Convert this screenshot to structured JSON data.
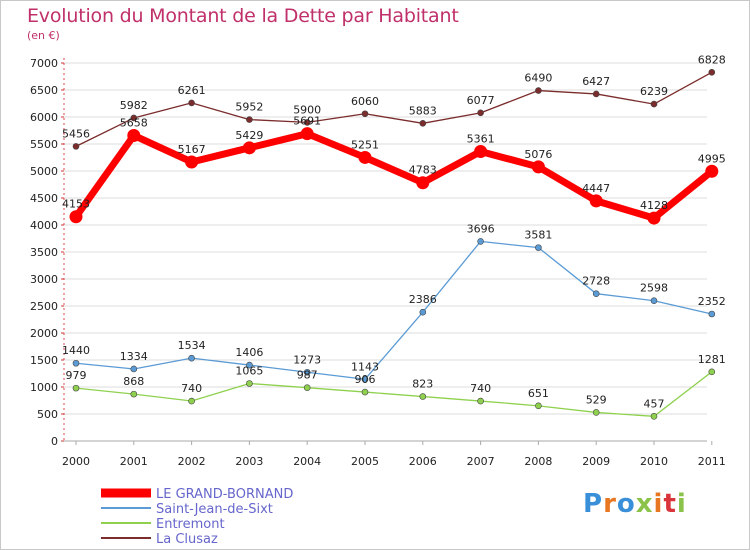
{
  "title": "Evolution du Montant de la Dette par Habitant",
  "subtitle": "(en €)",
  "logo": "Proxiti",
  "colors": {
    "title": "#c0306a",
    "grid": "#dddddd",
    "legend_text": "#6666cc"
  },
  "chart_data": {
    "type": "line",
    "title": "Evolution du Montant de la Dette par Habitant",
    "ylabel": "(en €)",
    "xlabel": "",
    "ylim": [
      0,
      7000
    ],
    "y_ticks": [
      0,
      500,
      1000,
      1500,
      2000,
      2500,
      3000,
      3500,
      4000,
      4500,
      5000,
      5500,
      6000,
      6500,
      7000
    ],
    "categories": [
      "2000",
      "2001",
      "2002",
      "2003",
      "2004",
      "2005",
      "2006",
      "2007",
      "2008",
      "2009",
      "2010",
      "2011"
    ],
    "grid": true,
    "legend_position": "bottom-left",
    "series": [
      {
        "name": "LE GRAND-BORNAND",
        "color": "#ff0000",
        "emphasis": true,
        "values": [
          4153,
          5658,
          5167,
          5429,
          5691,
          5251,
          4783,
          5361,
          5076,
          4447,
          4128,
          4995
        ],
        "labels": [
          "4153",
          "5658",
          "5167",
          "5429",
          "5691",
          "5251",
          "4783",
          "5361",
          "5076",
          "4447",
          "4128",
          "4995"
        ]
      },
      {
        "name": "Saint-Jean-de-Sixt",
        "color": "#5b9bd5",
        "values": [
          1440,
          1334,
          1534,
          1406,
          1273,
          1143,
          2386,
          3696,
          3581,
          2728,
          2598,
          2352
        ],
        "labels": [
          "1440",
          "1334",
          "1534",
          "1406",
          "1273",
          "1143",
          "2386",
          "3696",
          "3581",
          "2728",
          "2598",
          "2352"
        ]
      },
      {
        "name": "Entremont",
        "color": "#8fd14f",
        "values": [
          979,
          868,
          740,
          1065,
          987,
          906,
          823,
          740,
          651,
          529,
          457,
          1281
        ],
        "labels": [
          "979",
          "868",
          "740",
          "1065",
          "987",
          "906",
          "823",
          "740",
          "651",
          "529",
          "457",
          "1281"
        ]
      },
      {
        "name": "La Clusaz",
        "color": "#7b2c2c",
        "values": [
          5456,
          5982,
          6261,
          5952,
          5900,
          6060,
          5883,
          6077,
          6490,
          6427,
          6239,
          6828
        ],
        "labels": [
          "5456",
          "5982",
          "6261",
          "5952",
          "5900",
          "6060",
          "5883",
          "6077",
          "6490",
          "6427",
          "6239",
          "6828"
        ]
      }
    ]
  }
}
